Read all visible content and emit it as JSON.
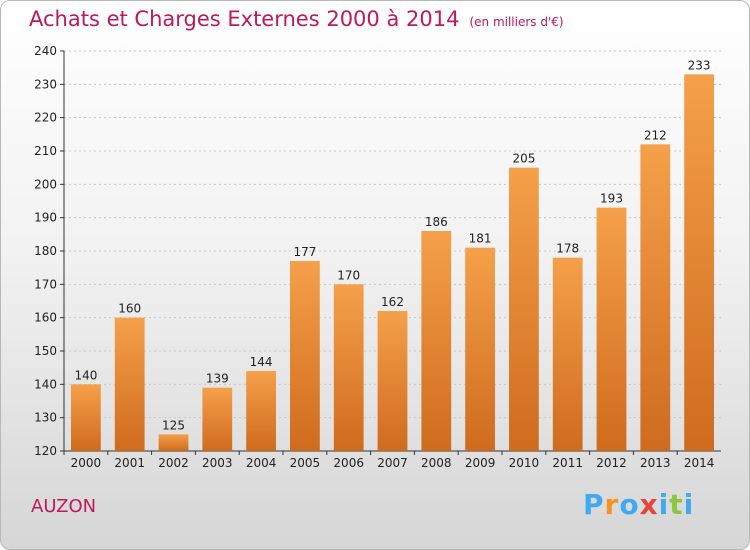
{
  "header": {
    "title": "Achats et Charges Externes 2000 à 2014",
    "unit": "(en milliers d'€)"
  },
  "footer": {
    "town": "AUZON",
    "logo_letters": [
      "P",
      "r",
      "o",
      "x",
      "i",
      "t",
      "i"
    ],
    "logo_colors": [
      "#3fa9f5",
      "#f7931e",
      "#3fa9f5",
      "#e8443a",
      "#3fa9f5",
      "#8cc63f",
      "#3fa9f5"
    ]
  },
  "chart_data": {
    "type": "bar",
    "title": "Achats et Charges Externes 2000 à 2014",
    "categories": [
      "2000",
      "2001",
      "2002",
      "2003",
      "2004",
      "2005",
      "2006",
      "2007",
      "2008",
      "2009",
      "2010",
      "2011",
      "2012",
      "2013",
      "2014"
    ],
    "values": [
      140,
      160,
      125,
      139,
      144,
      177,
      170,
      162,
      186,
      181,
      205,
      178,
      193,
      212,
      233
    ],
    "ylim": [
      120,
      240
    ],
    "yticks": [
      120,
      130,
      140,
      150,
      160,
      170,
      180,
      190,
      200,
      210,
      220,
      230,
      240
    ],
    "grid": true,
    "bar_color_top": "#f5a04a",
    "bar_color_bottom": "#cf6b1d"
  }
}
